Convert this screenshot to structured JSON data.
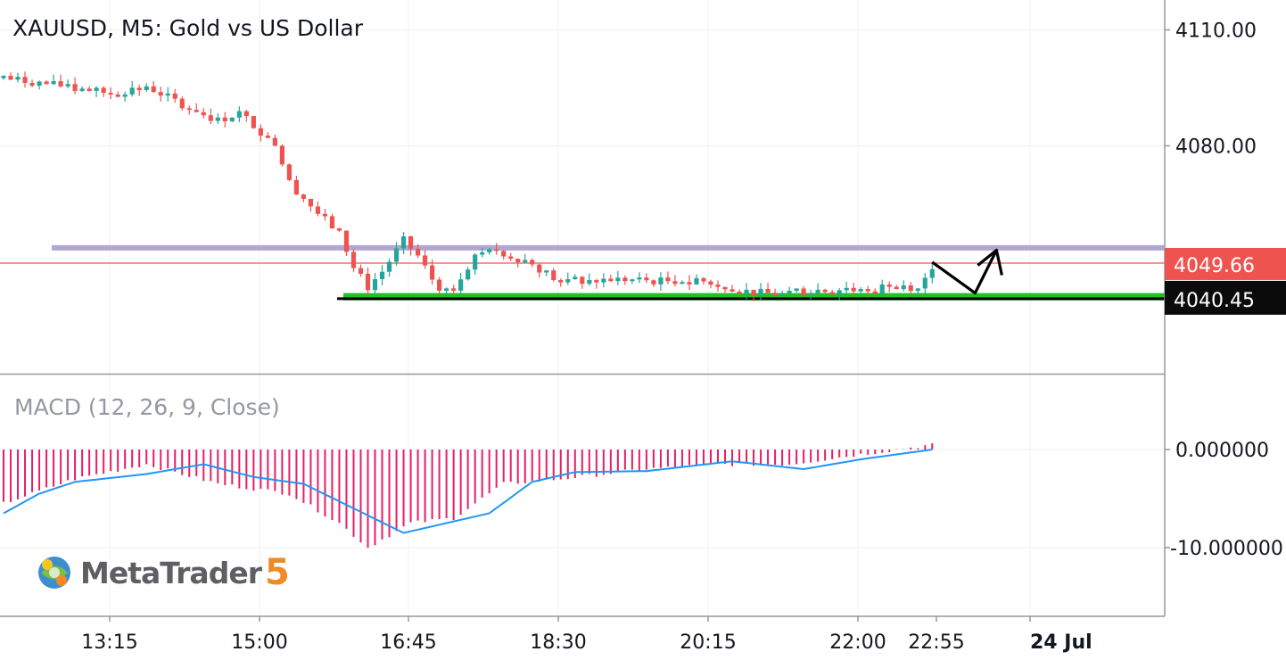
{
  "chart": {
    "title": "XAUUSD, M5: Gold vs US Dollar",
    "indicator_title": "MACD (12, 26, 9, Close)",
    "logo_text": "MetaTrader",
    "logo_number": "5",
    "colors": {
      "bull": "#26a69a",
      "bear": "#ef5350",
      "resistance_line": "#b1a7d2",
      "support_zone": "#1fc21f",
      "current_price_line": "#ef5350",
      "macd_histogram": "#e91e63",
      "macd_signal": "#2196f3",
      "grid": "#f0f0f3"
    }
  },
  "chart_data": {
    "type": "candlestick",
    "price_axis": {
      "tick_labels": [
        "4110.00",
        "4080.00"
      ],
      "ticks": [
        4110,
        4080
      ]
    },
    "macd_axis": {
      "tick_labels": [
        "0.000000",
        "-10.000000"
      ],
      "ticks": [
        0,
        -10
      ]
    },
    "time_axis": {
      "labels": [
        {
          "label": "13:15",
          "bold": false
        },
        {
          "label": "15:00",
          "bold": false
        },
        {
          "label": "16:45",
          "bold": false
        },
        {
          "label": "18:30",
          "bold": false
        },
        {
          "label": "20:15",
          "bold": false
        },
        {
          "label": "22:00",
          "bold": false
        },
        {
          "label": "22:55",
          "bold": false
        },
        {
          "label": "24 Jul",
          "bold": true
        }
      ]
    },
    "price_badges": [
      {
        "label": "4049.66",
        "value": 4049.66,
        "style": "red"
      },
      {
        "label": "4040.45",
        "value": 4040.45,
        "style": "black"
      }
    ],
    "levels": {
      "resistance": 4053.6,
      "support_top": 4041.9,
      "support_bottom": 4040.0,
      "support_line": 4040.45,
      "current_price": 4049.66
    },
    "projection_arrow": [
      {
        "index": 0,
        "price": 4049.9
      },
      {
        "index": 6,
        "price": 4041.9
      },
      {
        "index": 9,
        "price": 4053.0
      }
    ],
    "anchors": [
      {
        "index": 0,
        "price": 4097.5
      },
      {
        "index": 8,
        "price": 4095.5
      },
      {
        "index": 15,
        "price": 4093.5
      },
      {
        "index": 20,
        "price": 4095.5
      },
      {
        "index": 23,
        "price": 4092.5
      },
      {
        "index": 30,
        "price": 4086.5
      },
      {
        "index": 33,
        "price": 4088.5
      },
      {
        "index": 38,
        "price": 4080.5
      },
      {
        "index": 40,
        "price": 4070.5
      },
      {
        "index": 44,
        "price": 4062.5
      },
      {
        "index": 47,
        "price": 4057.5
      },
      {
        "index": 49,
        "price": 4048.5
      },
      {
        "index": 51,
        "price": 4043.5
      },
      {
        "index": 53,
        "price": 4047.5
      },
      {
        "index": 56,
        "price": 4055.5
      },
      {
        "index": 58,
        "price": 4051.5
      },
      {
        "index": 60,
        "price": 4045.5
      },
      {
        "index": 62,
        "price": 4041.5
      },
      {
        "index": 66,
        "price": 4051.5
      },
      {
        "index": 69,
        "price": 4053.0
      },
      {
        "index": 74,
        "price": 4049.5
      },
      {
        "index": 78,
        "price": 4044.5
      },
      {
        "index": 85,
        "price": 4045.5
      },
      {
        "index": 92,
        "price": 4045.0
      },
      {
        "index": 97,
        "price": 4045.5
      },
      {
        "index": 101,
        "price": 4043.5
      },
      {
        "index": 105,
        "price": 4042.0
      },
      {
        "index": 110,
        "price": 4041.5
      },
      {
        "index": 115,
        "price": 4043.0
      },
      {
        "index": 121,
        "price": 4042.5
      },
      {
        "index": 125,
        "price": 4044.5
      },
      {
        "index": 128,
        "price": 4043.0
      },
      {
        "index": 130,
        "price": 4049.0
      }
    ],
    "macd_histogram_anchors": [
      {
        "index": 0,
        "value": -5.5
      },
      {
        "index": 10,
        "value": -3.0
      },
      {
        "index": 20,
        "value": -1.5
      },
      {
        "index": 30,
        "value": -3.5
      },
      {
        "index": 40,
        "value": -4.5
      },
      {
        "index": 47,
        "value": -7.5
      },
      {
        "index": 51,
        "value": -10.0
      },
      {
        "index": 57,
        "value": -7.5
      },
      {
        "index": 63,
        "value": -7.0
      },
      {
        "index": 70,
        "value": -3.5
      },
      {
        "index": 78,
        "value": -3.0
      },
      {
        "index": 90,
        "value": -2.0
      },
      {
        "index": 100,
        "value": -1.5
      },
      {
        "index": 110,
        "value": -1.5
      },
      {
        "index": 120,
        "value": -0.5
      },
      {
        "index": 130,
        "value": 0.5
      }
    ],
    "macd_signal_anchors": [
      {
        "index": 0,
        "value": -6.5
      },
      {
        "index": 5,
        "value": -4.5
      },
      {
        "index": 10,
        "value": -3.3
      },
      {
        "index": 20,
        "value": -2.5
      },
      {
        "index": 28,
        "value": -1.5
      },
      {
        "index": 35,
        "value": -2.8
      },
      {
        "index": 42,
        "value": -3.5
      },
      {
        "index": 49,
        "value": -6.0
      },
      {
        "index": 56,
        "value": -8.5
      },
      {
        "index": 62,
        "value": -7.5
      },
      {
        "index": 68,
        "value": -6.5
      },
      {
        "index": 74,
        "value": -3.3
      },
      {
        "index": 80,
        "value": -2.3
      },
      {
        "index": 90,
        "value": -2.2
      },
      {
        "index": 102,
        "value": -1.2
      },
      {
        "index": 112,
        "value": -2.0
      },
      {
        "index": 120,
        "value": -1.0
      },
      {
        "index": 130,
        "value": 0.0
      }
    ],
    "candle_count": 131
  }
}
